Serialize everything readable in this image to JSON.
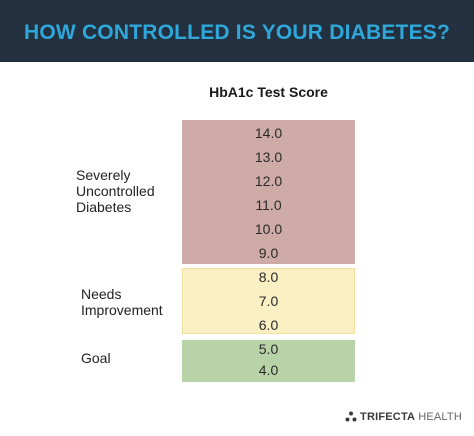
{
  "header": {
    "title": "HOW CONTROLLED IS YOUR DIABETES?"
  },
  "table": {
    "column_title": "HbA1c Test Score",
    "groups": [
      {
        "label_lines": [
          "Severely",
          "Uncontrolled",
          "Diabetes"
        ],
        "scores": [
          "14.0",
          "13.0",
          "12.0",
          "11.0",
          "10.0",
          "9.0"
        ],
        "color": "#cfaba7"
      },
      {
        "label_lines": [
          "Needs",
          "Improvement"
        ],
        "scores": [
          "8.0",
          "7.0",
          "6.0"
        ],
        "color": "#fbefc4"
      },
      {
        "label_lines": [
          "Goal"
        ],
        "scores": [
          "5.0",
          "4.0"
        ],
        "color": "#b9d3a9"
      }
    ]
  },
  "brand": {
    "bold": "TRIFECTA",
    "light": "HEALTH"
  },
  "colors": {
    "header_bg": "#223040",
    "title": "#2fa7d9"
  }
}
